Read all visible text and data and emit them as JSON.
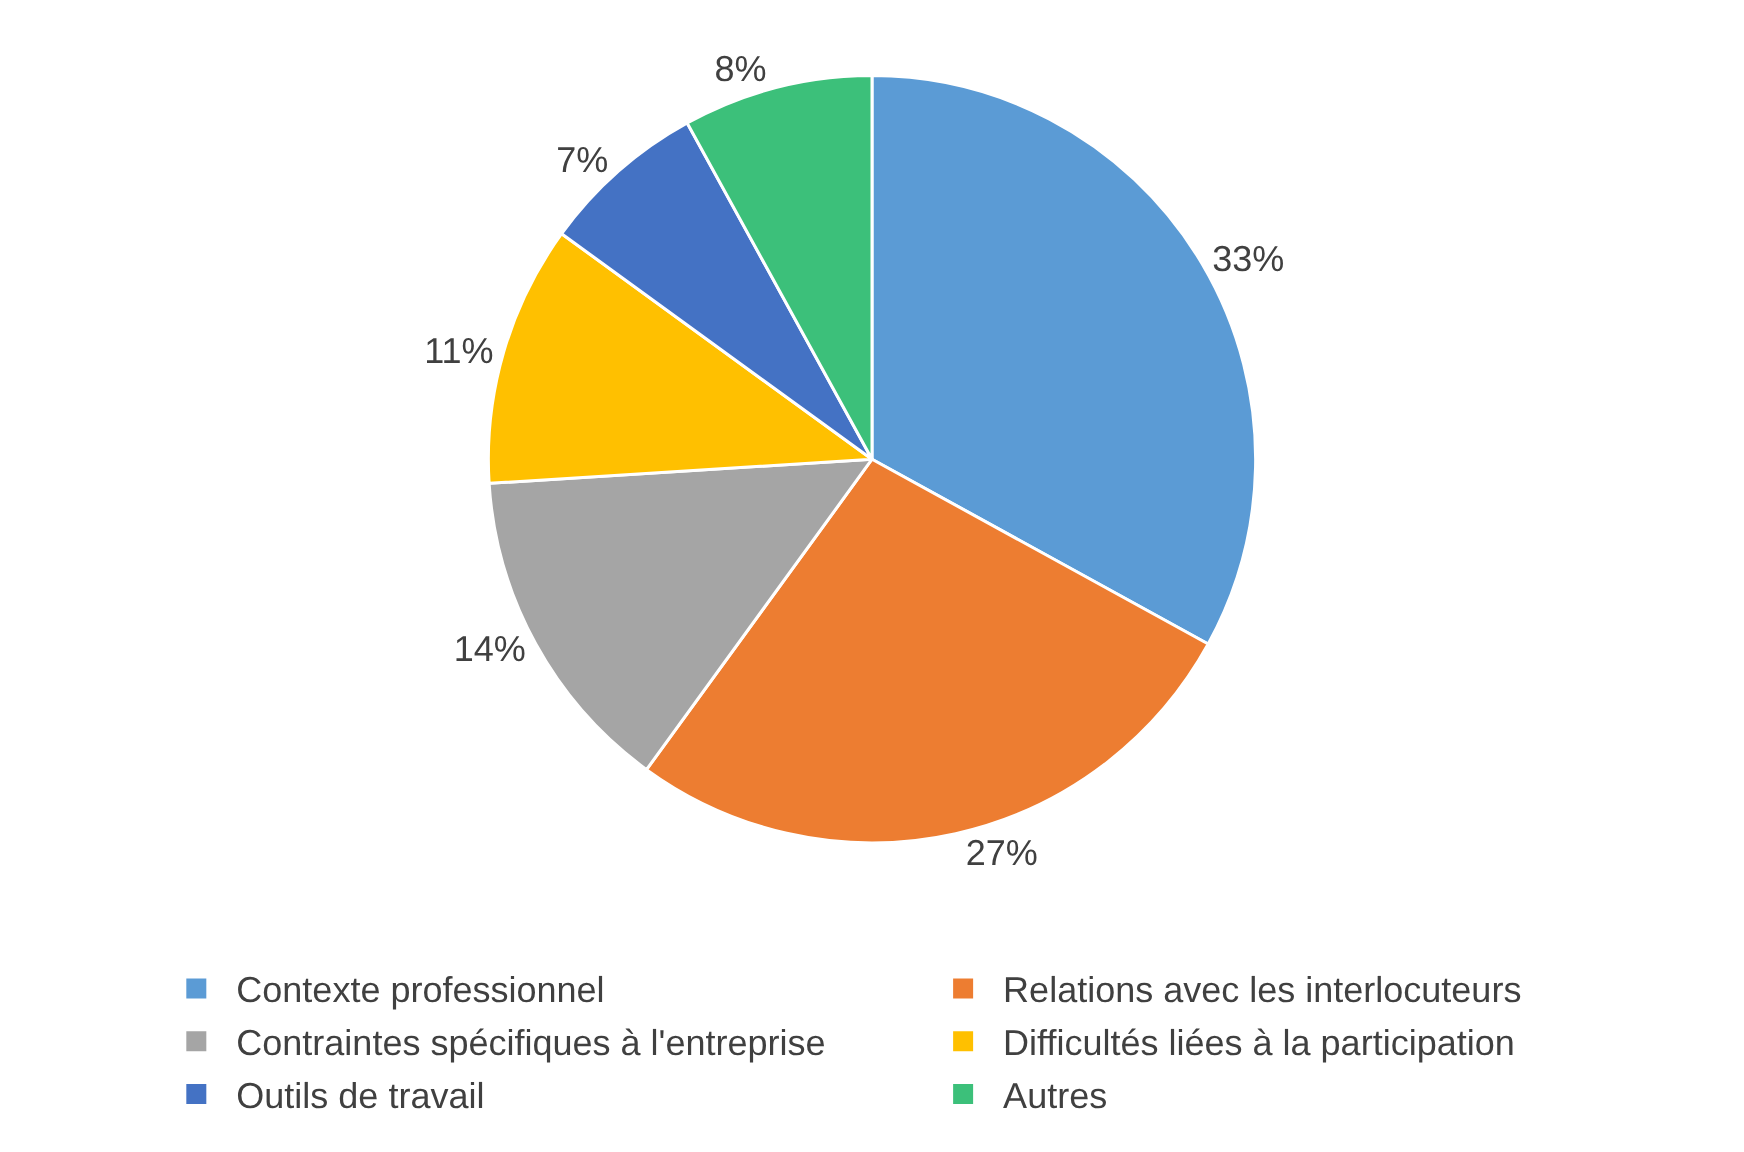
{
  "chart_data": {
    "type": "pie",
    "categories": [
      "Contexte professionnel",
      "Relations avec les interlocuteurs",
      "Contraintes spécifiques à l'entreprise",
      "Difficultés liées à la participation",
      "Outils de travail",
      "Autres"
    ],
    "values": [
      33,
      27,
      14,
      11,
      7,
      8
    ],
    "value_labels": [
      "33%",
      "27%",
      "14%",
      "11%",
      "7%",
      "8%"
    ],
    "colors": [
      "#5b9bd5",
      "#ed7d31",
      "#a5a5a5",
      "#ffc000",
      "#4472c4",
      "#3cc07a"
    ],
    "legend": "bottom"
  }
}
